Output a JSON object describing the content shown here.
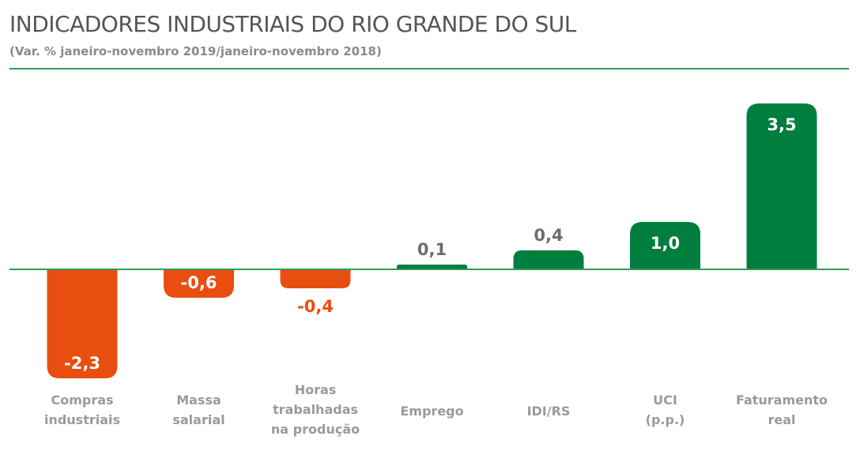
{
  "header": {
    "title": "INDICADORES INDUSTRIAIS DO RIO GRANDE DO SUL",
    "subtitle": "(Var. % janeiro-novembro 2019/janeiro-novembro 2018)"
  },
  "colors": {
    "positive": "#007e3e",
    "negative": "#e84e0f",
    "value_outside_positive": "#6d6d6d",
    "axis": "#2f9a5c"
  },
  "chart_data": {
    "type": "bar",
    "categories": [
      [
        "Compras",
        "industriais"
      ],
      [
        "Massa",
        "salarial"
      ],
      [
        "Horas",
        "trabalhadas",
        "na produção"
      ],
      [
        "Emprego"
      ],
      [
        "IDI/RS"
      ],
      [
        "UCI",
        "(p.p.)"
      ],
      [
        "Faturamento",
        "real"
      ]
    ],
    "values": [
      -2.3,
      -0.6,
      -0.4,
      0.1,
      0.4,
      1.0,
      3.5
    ],
    "value_labels": [
      "-2,3",
      "-0,6",
      "-0,4",
      "0,1",
      "0,4",
      "1,0",
      "3,5"
    ],
    "ylim": [
      -2.3,
      3.5
    ],
    "grid": false,
    "legend": "none"
  }
}
